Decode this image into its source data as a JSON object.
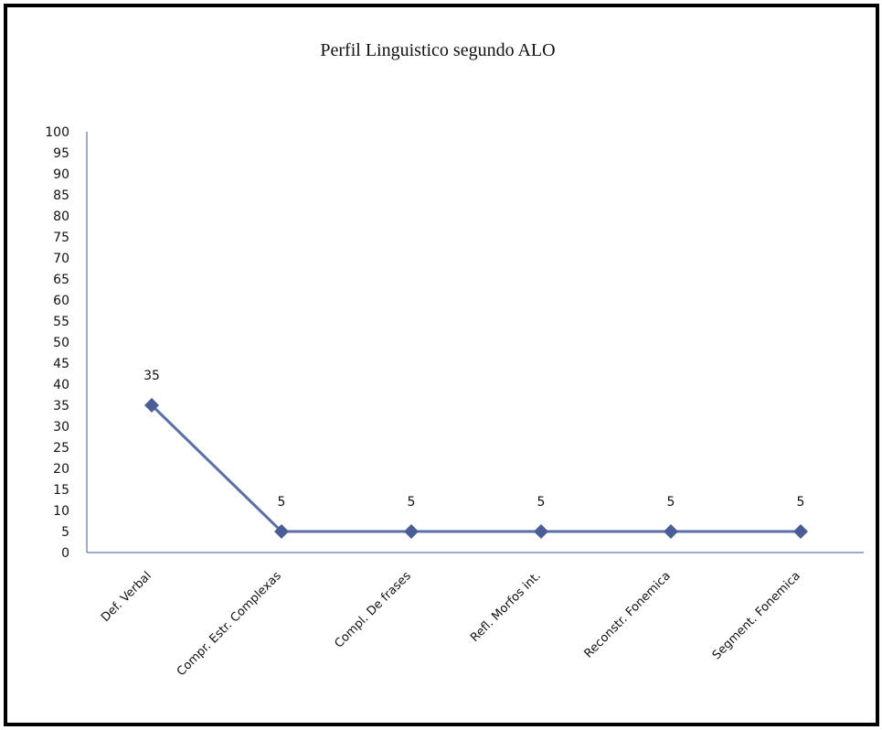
{
  "chart_data": {
    "type": "line",
    "title": "Perfil Linguistico segundo ALO",
    "xlabel": "",
    "ylabel": "",
    "categories": [
      "Def. Verbal",
      "Compr. Estr. Complexas",
      "Compl. De frases",
      "Refl. Morfos int.",
      "Reconstr. Fonemica",
      "Segment. Fonemica"
    ],
    "series": [
      {
        "values": [
          35,
          5,
          5,
          5,
          5,
          5
        ]
      }
    ],
    "ylim": [
      0,
      100
    ],
    "y_ticks": [
      0,
      5,
      10,
      15,
      20,
      25,
      30,
      35,
      40,
      45,
      50,
      55,
      60,
      65,
      70,
      75,
      80,
      85,
      90,
      95,
      100
    ],
    "data_labels": [
      "35",
      "5",
      "5",
      "5",
      "5",
      "5"
    ],
    "grid": false,
    "legend": "none",
    "colors": {
      "line": "#5b6fa8",
      "marker": "#4a5d96",
      "axis": "#7f8fb8"
    }
  }
}
